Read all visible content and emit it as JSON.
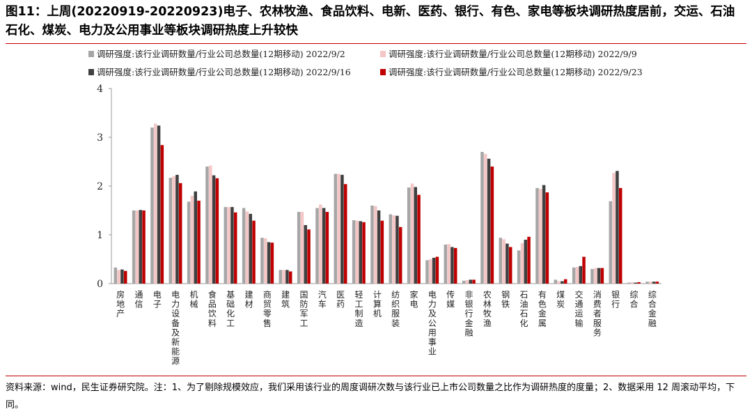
{
  "title": "图11：上周(20220919-20220923)电子、农林牧渔、食品饮料、电新、医药、银行、有色、家电等板块调研热度居前，交运、石油石化、煤炭、电力及公用事业等板块调研热度上升较快",
  "source": "资料来源：wind，民生证券研究院。注：1、为了剔除规模效应，我们采用该行业的周度调研次数与该行业已上市公司数量之比作为调研热度的度量；2、数据采用 12 周滚动平均，下同。",
  "chart_data": {
    "type": "bar",
    "ylim": [
      0,
      4
    ],
    "yticks": [
      "0",
      "1",
      "2",
      "3",
      "4"
    ],
    "legend_position": "top",
    "grid": false,
    "categories": [
      "房地产",
      "通信",
      "电子",
      "电力设备及新能源",
      "机械",
      "食品饮料",
      "基础化工",
      "建材",
      "商贸零售",
      "建筑",
      "国防军工",
      "汽车",
      "医药",
      "轻工制造",
      "计算机",
      "纺织服装",
      "家电",
      "电力及公用事业",
      "传媒",
      "非银行金融",
      "农林牧渔",
      "钢铁",
      "石油石化",
      "有色金属",
      "煤炭",
      "交通运输",
      "消费者服务",
      "银行",
      "综合",
      "综合金融"
    ],
    "series": [
      {
        "name": "调研强度:该行业调研数量/行业公司总数量(12期移动) 2022/9/2",
        "color": "#a6a6a6",
        "values": [
          0.33,
          1.5,
          3.2,
          2.17,
          1.68,
          2.4,
          1.57,
          1.55,
          0.94,
          0.28,
          1.47,
          1.55,
          2.25,
          1.3,
          1.6,
          1.42,
          1.97,
          0.48,
          0.8,
          0.06,
          2.7,
          0.94,
          0.68,
          1.96,
          0.08,
          0.33,
          0.3,
          1.69,
          0.02,
          0.04
        ]
      },
      {
        "name": "调研强度:该行业调研数量/行业公司总数量(12期移动) 2022/9/9",
        "color": "#f4c6c6",
        "values": [
          0.28,
          1.5,
          3.28,
          2.2,
          1.8,
          2.42,
          1.57,
          1.48,
          0.93,
          0.28,
          1.47,
          1.62,
          2.25,
          1.29,
          1.59,
          1.4,
          2.05,
          0.5,
          0.81,
          0.07,
          2.66,
          0.91,
          0.83,
          1.94,
          0.05,
          0.34,
          0.32,
          2.27,
          0.03,
          0.04
        ]
      },
      {
        "name": "调研强度:该行业调研数量/行业公司总数量(12期移动) 2022/9/16",
        "color": "#404040",
        "values": [
          0.29,
          1.51,
          3.24,
          2.23,
          1.89,
          2.22,
          1.57,
          1.43,
          0.85,
          0.28,
          1.2,
          1.55,
          2.23,
          1.28,
          1.5,
          1.39,
          1.98,
          0.53,
          0.75,
          0.08,
          2.56,
          0.82,
          0.9,
          2.02,
          0.05,
          0.36,
          0.32,
          2.31,
          0.02,
          0.04
        ]
      },
      {
        "name": "调研强度:该行业调研数量/行业公司总数量(12期移动) 2022/9/23",
        "color": "#c00000",
        "values": [
          0.26,
          1.5,
          2.84,
          2.06,
          1.7,
          2.16,
          1.46,
          1.29,
          0.84,
          0.25,
          1.11,
          1.47,
          2.04,
          1.26,
          1.29,
          1.16,
          1.82,
          0.55,
          0.73,
          0.08,
          2.4,
          0.75,
          0.96,
          1.87,
          0.09,
          0.55,
          0.32,
          1.96,
          0.03,
          0.04
        ]
      }
    ]
  }
}
